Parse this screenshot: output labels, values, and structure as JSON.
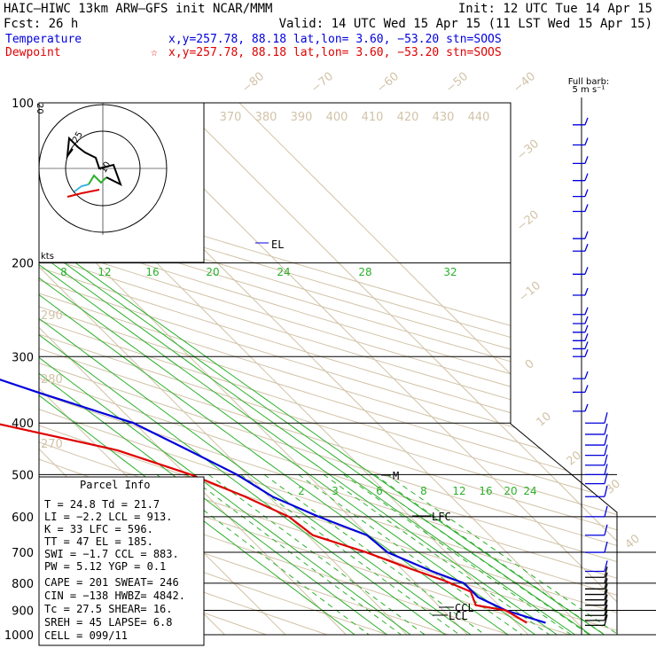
{
  "header": {
    "title": "HAIC–HIWC 13km ARW–GFS init   NCAR/MMM",
    "init": "Init: 12 UTC Tue 14 Apr 15",
    "fcst": "Fcst:   26 h",
    "valid": "Valid: 14 UTC Wed 15 Apr 15 (11 LST Wed 15 Apr 15)",
    "temp_label": "Temperature",
    "temp_loc": "x,y=257.78, 88.18   lat,lon=  3.60, −53.20  stn=SOOS",
    "dew_label": "Dewpoint",
    "dew_marker": "☆",
    "dew_loc": "x,y=257.78, 88.18   lat,lon=  3.60, −53.20  stn=SOOS"
  },
  "barb_legend": {
    "line1": "Full barb:",
    "line2": "5 m s⁻¹"
  },
  "hodograph": {
    "ring_label": "20",
    "label_25": "25",
    "label_10": "10",
    "units": "kts"
  },
  "parcel_info": {
    "title": "Parcel Info",
    "lines": [
      "T  =   24.8 Td =  21.7",
      "LI =   −2.2 LCL =  913.",
      "K  =     33 LFC =  596.",
      "TT =     47 EL  =  185.",
      "SWI =  −1.7 CCL =  883.",
      "PW =   5.12 YGP =   0.1",
      "CAPE =  201 SWEAT=  246",
      "CIN =  −138 HWBZ= 4842.",
      "Tc =   27.5 SHEAR=  16.",
      "SREH =   45 LAPSE=  6.8",
      "CELL = 099/11"
    ]
  },
  "chart_data": {
    "type": "skew-t",
    "pressure_levels": [
      100,
      200,
      300,
      400,
      500,
      600,
      700,
      800,
      900,
      1000
    ],
    "isotherm_labels": [
      "−80",
      "−70",
      "−60",
      "−50",
      "−40",
      "−30",
      "−20",
      "−10",
      "0",
      "10",
      "20",
      "30",
      "40"
    ],
    "theta_labels": [
      "370",
      "380",
      "390",
      "400",
      "410",
      "420",
      "430",
      "440"
    ],
    "theta_side_labels": [
      "290",
      "280",
      "270"
    ],
    "mixing_ratio_upper": [
      "8",
      "12",
      "16",
      "20",
      "24",
      "28",
      "32"
    ],
    "mixing_ratio_lower": [
      "2",
      "3",
      "4",
      "6",
      "8",
      "12",
      "16",
      "20",
      "24"
    ],
    "markers": [
      "EL",
      "M",
      "LFC",
      "CCL",
      "LCL"
    ],
    "colors": {
      "temperature": "#0000dd",
      "dewpoint": "#e00000",
      "isotherm": "#d2c3a8",
      "mixing_ratio": "#2bb02b"
    },
    "temperature": [
      {
        "p": 100,
        "t": -75.0
      },
      {
        "p": 110,
        "t": -76.6
      },
      {
        "p": 120,
        "t": -77.3
      },
      {
        "p": 140,
        "t": -74.4
      },
      {
        "p": 160,
        "t": -67.3
      },
      {
        "p": 185,
        "t": -59.3
      },
      {
        "p": 200,
        "t": -55.4
      },
      {
        "p": 250,
        "t": -41.8
      },
      {
        "p": 300,
        "t": -32.5
      },
      {
        "p": 350,
        "t": -20.9
      },
      {
        "p": 400,
        "t": -10.2
      },
      {
        "p": 450,
        "t": -5.6
      },
      {
        "p": 500,
        "t": -1.6
      },
      {
        "p": 550,
        "t": 0.6
      },
      {
        "p": 600,
        "t": 4.9
      },
      {
        "p": 650,
        "t": 9.8
      },
      {
        "p": 700,
        "t": 10.4
      },
      {
        "p": 760,
        "t": 14.6
      },
      {
        "p": 800,
        "t": 17.9
      },
      {
        "p": 850,
        "t": 17.9
      },
      {
        "p": 900,
        "t": 20.3
      },
      {
        "p": 950,
        "t": 24.8
      }
    ],
    "dewpoint": [
      {
        "p": 100,
        "t": -85.2
      },
      {
        "p": 130,
        "t": -88.8
      },
      {
        "p": 160,
        "t": -87.7
      },
      {
        "p": 185,
        "t": -92.9
      },
      {
        "p": 200,
        "t": -86.6
      },
      {
        "p": 230,
        "t": -72.1
      },
      {
        "p": 260,
        "t": -59.6
      },
      {
        "p": 300,
        "t": -51.0
      },
      {
        "p": 330,
        "t": -41.3
      },
      {
        "p": 345,
        "t": -45.0
      },
      {
        "p": 380,
        "t": -43.4
      },
      {
        "p": 400,
        "t": -33.1
      },
      {
        "p": 450,
        "t": -17.3
      },
      {
        "p": 500,
        "t": -9.2
      },
      {
        "p": 550,
        "t": -3.9
      },
      {
        "p": 600,
        "t": 0.0
      },
      {
        "p": 650,
        "t": 0.9
      },
      {
        "p": 700,
        "t": 6.9
      },
      {
        "p": 750,
        "t": 11.3
      },
      {
        "p": 790,
        "t": 15.0
      },
      {
        "p": 830,
        "t": 17.6
      },
      {
        "p": 880,
        "t": 16.2
      },
      {
        "p": 900,
        "t": 20.3
      },
      {
        "p": 950,
        "t": 21.7
      }
    ],
    "wind_barb_levels": [
      110,
      120,
      130,
      140,
      150,
      160,
      180,
      190,
      210,
      230,
      250,
      260,
      270,
      280,
      290,
      300,
      330,
      350,
      380,
      400,
      420,
      440,
      460,
      480,
      500,
      520,
      550,
      600,
      650,
      700,
      760,
      780,
      800,
      820,
      840,
      860,
      880,
      900,
      920,
      940,
      960
    ]
  }
}
